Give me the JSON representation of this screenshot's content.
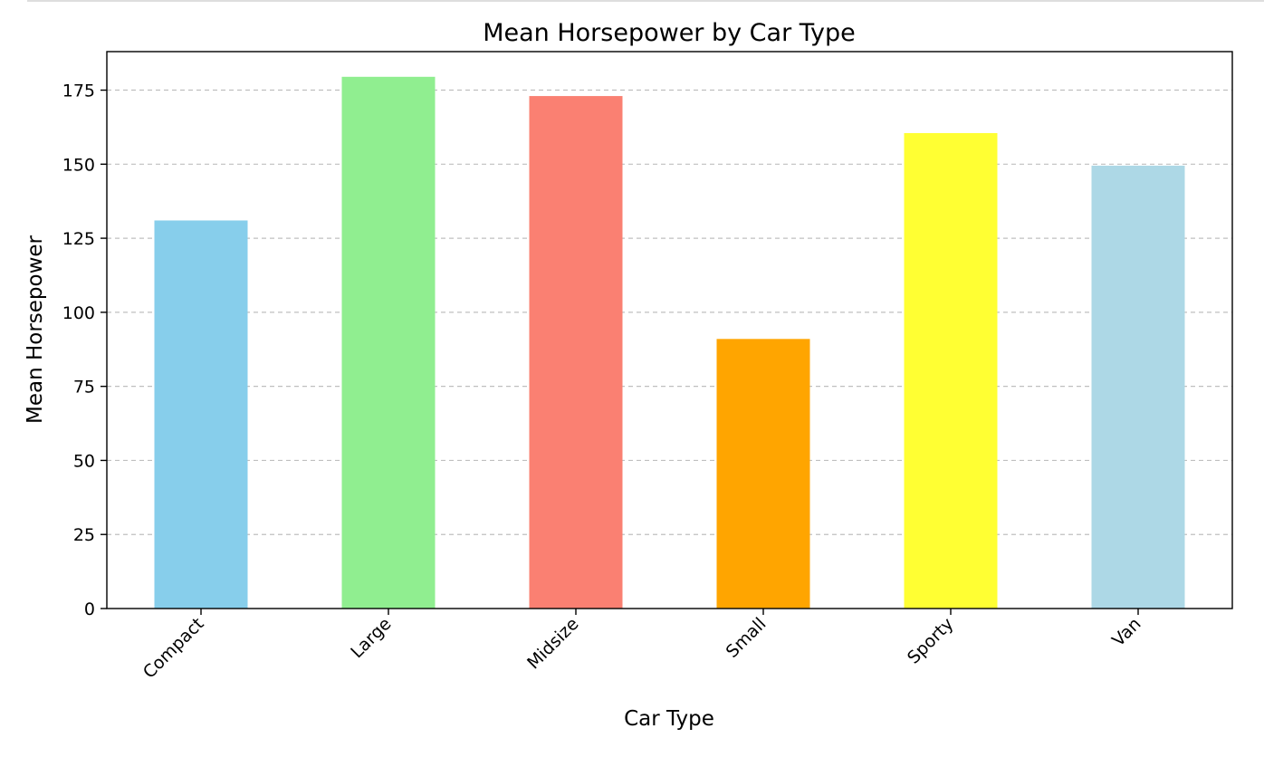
{
  "chart_data": {
    "type": "bar",
    "title": "Mean Horsepower by Car Type",
    "xlabel": "Car Type",
    "ylabel": "Mean Horsepower",
    "categories": [
      "Compact",
      "Large",
      "Midsize",
      "Small",
      "Sporty",
      "Van"
    ],
    "values": [
      131.0,
      179.5,
      173.0,
      91.0,
      160.5,
      149.5
    ],
    "colors": [
      "#87ceeb",
      "#90ee90",
      "#fa8072",
      "#ffa500",
      "#ffff33",
      "#add8e6"
    ],
    "ylim": [
      0,
      188
    ],
    "yticks": [
      0,
      25,
      50,
      75,
      100,
      125,
      150,
      175
    ],
    "ytick_labels": [
      "0",
      "25",
      "50",
      "75",
      "100",
      "125",
      "150",
      "175"
    ],
    "grid": "y-dashed",
    "legend": "none"
  }
}
